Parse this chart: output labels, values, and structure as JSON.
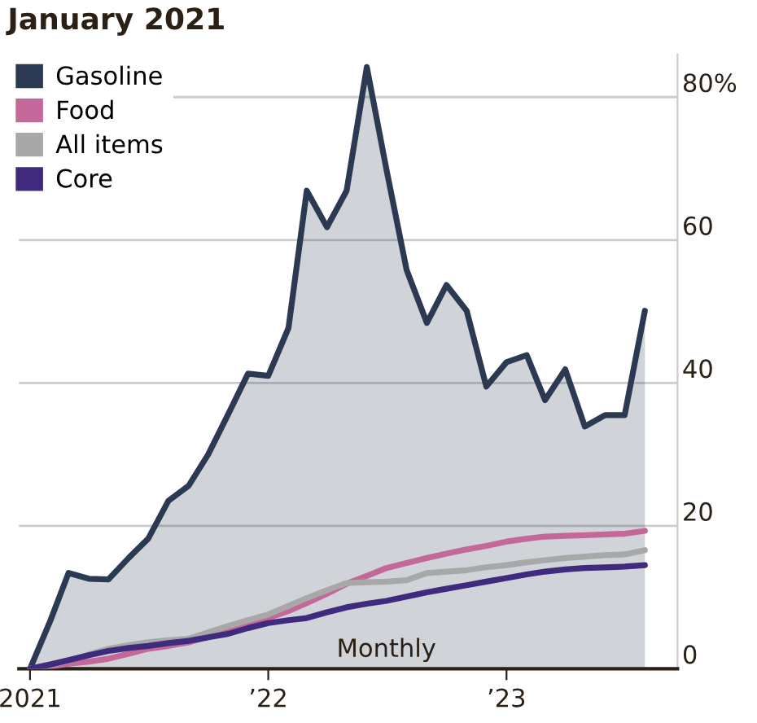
{
  "chart_data": {
    "type": "line",
    "title": "January 2021",
    "x": [
      "2021-01",
      "2021-02",
      "2021-03",
      "2021-04",
      "2021-05",
      "2021-06",
      "2021-07",
      "2021-08",
      "2021-09",
      "2021-10",
      "2021-11",
      "2021-12",
      "2022-01",
      "2022-02",
      "2022-03",
      "2022-04",
      "2022-05",
      "2022-06",
      "2022-07",
      "2022-08",
      "2022-09",
      "2022-10",
      "2022-11",
      "2022-12",
      "2023-01",
      "2023-02",
      "2023-03",
      "2023-04",
      "2023-05",
      "2023-06",
      "2023-07",
      "2023-08"
    ],
    "series": [
      {
        "name": "Gasoline",
        "type": "area",
        "color": "#2b3a52",
        "values": [
          0,
          6.7,
          13.4,
          12.6,
          12.5,
          15.5,
          18.2,
          23.5,
          25.6,
          30,
          35.7,
          41.3,
          41,
          47.7,
          66.9,
          61.8,
          66.9,
          84.2,
          69.9,
          55.8,
          48.4,
          53.7,
          50.1,
          39.5,
          42.9,
          43.9,
          37.6,
          41.9,
          33.9,
          35.5,
          35.5,
          50.1
        ]
      },
      {
        "name": "Food",
        "color": "#c4689a",
        "values": [
          0,
          0.3,
          0.7,
          1,
          1.4,
          2.1,
          2.8,
          3.2,
          3.7,
          4.5,
          5.3,
          6.2,
          7.1,
          8.1,
          9.2,
          10.5,
          11.9,
          13,
          14.1,
          14.8,
          15.5,
          16.1,
          16.7,
          17.2,
          17.8,
          18.2,
          18.5,
          18.6,
          18.7,
          18.8,
          18.9,
          19.3
        ]
      },
      {
        "name": "All items",
        "color": "#a8a8a8",
        "values": [
          0,
          0.5,
          1.1,
          2,
          2.8,
          3.3,
          3.7,
          4,
          4.2,
          5.1,
          6,
          6.8,
          7.6,
          8.8,
          9.9,
          11,
          12,
          12.1,
          12.2,
          12.4,
          13.4,
          13.6,
          13.8,
          14.2,
          14.5,
          14.9,
          15.2,
          15.5,
          15.7,
          15.9,
          16,
          16.6
        ]
      },
      {
        "name": "Core",
        "color": "#3f2a7e",
        "values": [
          0,
          0.6,
          1.2,
          1.9,
          2.5,
          2.9,
          3.2,
          3.6,
          3.9,
          4.4,
          4.9,
          5.7,
          6.4,
          6.8,
          7.1,
          7.9,
          8.6,
          9.1,
          9.5,
          10.1,
          10.7,
          11.2,
          11.7,
          12.2,
          12.7,
          13.2,
          13.6,
          13.9,
          14.1,
          14.2,
          14.3,
          14.5
        ]
      }
    ],
    "xlim": [
      "2020-12-15",
      "2023-09-20"
    ],
    "xticks": [
      {
        "value": "2021-01",
        "label": "2021"
      },
      {
        "value": "2022-01",
        "label": "’22"
      },
      {
        "value": "2023-01",
        "label": "’23"
      }
    ],
    "ylim": [
      0,
      86
    ],
    "yticks": [
      0,
      20,
      40,
      60,
      {
        "value": 80,
        "label": "80%"
      }
    ],
    "grid": "y",
    "legend": "top left",
    "annotations": [
      {
        "text": "Monthly",
        "x": "2022-07",
        "y": 0
      }
    ]
  }
}
